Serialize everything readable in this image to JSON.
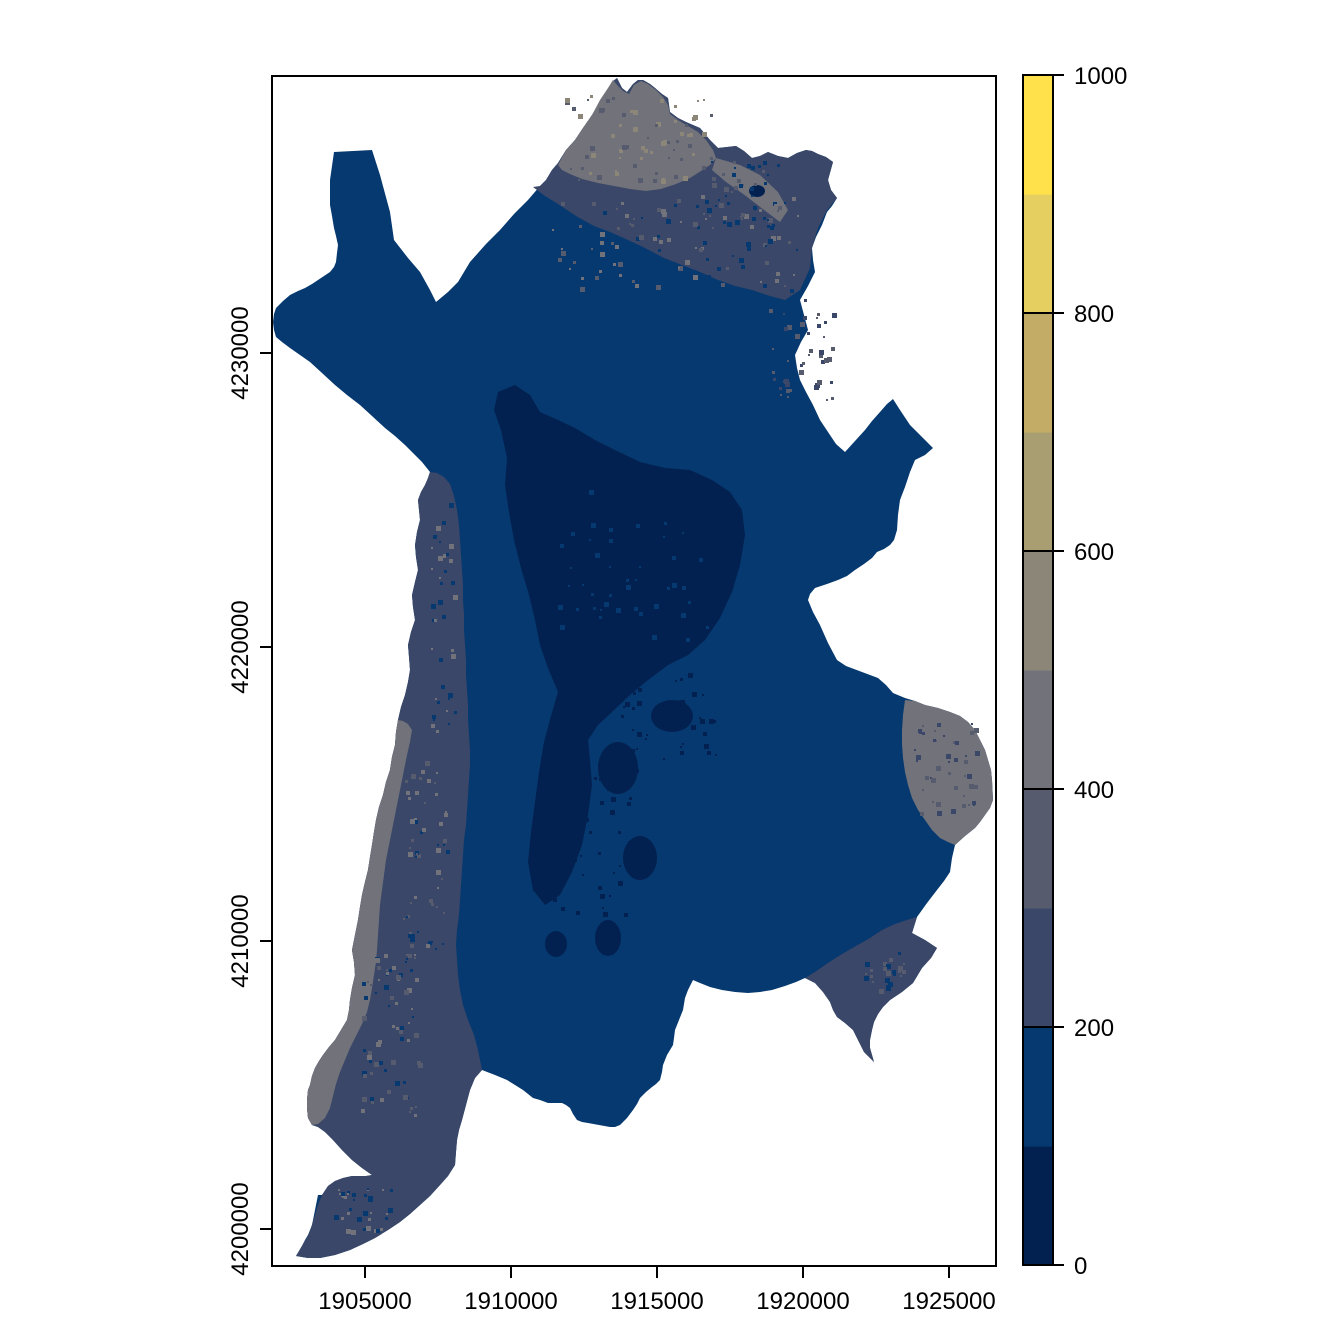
{
  "figure": {
    "background": "#ffffff",
    "frame_color": "#000000",
    "description": "Raster map plot (R terra-style) of an irregular region, projected coordinates, with vertical color-scale legend 0-1000"
  },
  "palette": {
    "deep": "#032150",
    "navy": "#06396F",
    "slate": "#3A4768",
    "slategray": "#565C6E",
    "gray": "#71727A",
    "stone": "#8B8677",
    "olive": "#A99E71",
    "khaki": "#C3AC66",
    "sand": "#E6CF61",
    "yellow": "#FFE24B"
  },
  "chart_data": {
    "type": "heatmap",
    "title": "",
    "xlabel": "",
    "ylabel": "",
    "x_axis": {
      "tick_labels": [
        "1905000",
        "1910000",
        "1915000",
        "1920000",
        "1925000"
      ],
      "tick_values": [
        1905000,
        1910000,
        1915000,
        1920000,
        1925000
      ],
      "approx_range": [
        1901700,
        1926600
      ]
    },
    "y_axis": {
      "tick_labels": [
        "4200000",
        "4210000",
        "4220000",
        "4230000"
      ],
      "tick_values": [
        4200000,
        4210000,
        4220000,
        4230000
      ],
      "approx_range": [
        4198700,
        4240200
      ]
    },
    "legend": {
      "position": "right",
      "min": 0,
      "max": 1000,
      "tick_labels": [
        "0",
        "200",
        "400",
        "600",
        "800",
        "1000"
      ],
      "tick_values": [
        0,
        200,
        400,
        600,
        800,
        1000
      ],
      "breaks": [
        0,
        100,
        200,
        300,
        400,
        500,
        600,
        700,
        800,
        900,
        1000
      ],
      "colors": [
        "#032150",
        "#06396F",
        "#3A4768",
        "#565C6E",
        "#71727A",
        "#8B8677",
        "#A99E71",
        "#C3AC66",
        "#E6CF61",
        "#FFE24B"
      ]
    },
    "raster_classes": [
      {
        "range": "0-100",
        "color": "#032150",
        "where": "dark patches in centre of region"
      },
      {
        "range": "100-200",
        "color": "#06396F",
        "where": "dominant value over most of the region"
      },
      {
        "range": "200-300",
        "color": "#3A4768",
        "where": "band across the north, inner west strip, SE wing and SW tail"
      },
      {
        "range": "300-400",
        "color": "#565C6E",
        "where": "speckles within the northern band and grey areas"
      },
      {
        "range": "400-500",
        "color": "#71727A",
        "where": "northern peaks, outer west strip, SE bulge at right edge"
      }
    ]
  }
}
